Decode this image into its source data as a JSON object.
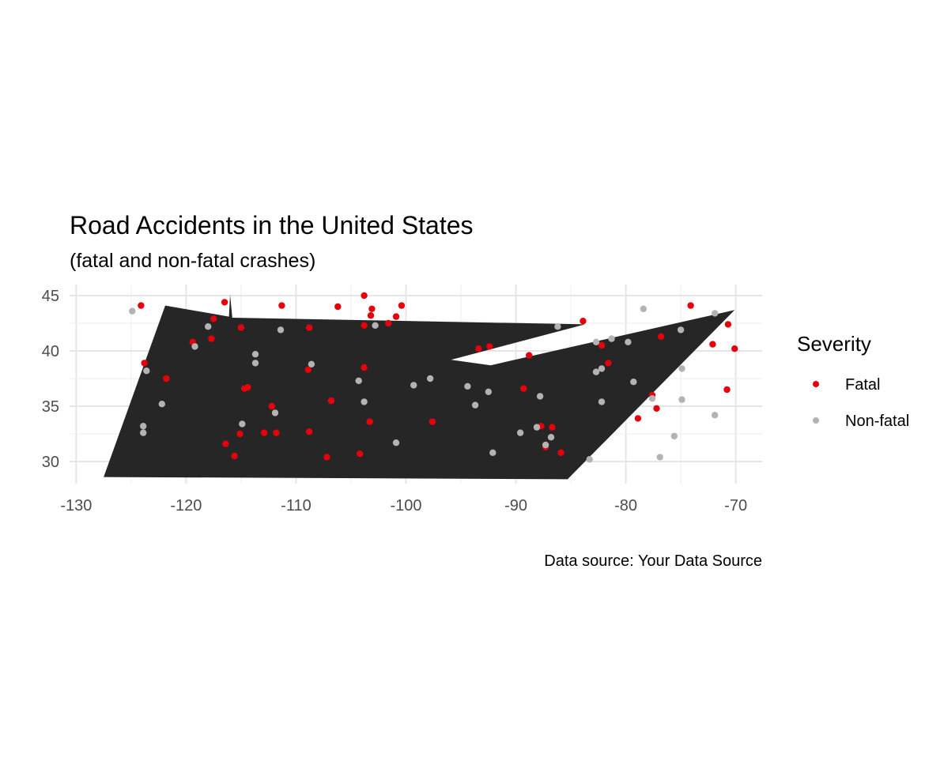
{
  "chart_data": {
    "type": "scatter",
    "title": "Road Accidents in the United States",
    "subtitle": "(fatal and non-fatal crashes)",
    "caption": "Data source: Your Data Source",
    "xlim": [
      -130.6,
      -67.6
    ],
    "ylim": [
      28,
      46
    ],
    "x_ticks": [
      -130,
      -120,
      -110,
      -100,
      -90,
      -80,
      -70
    ],
    "y_ticks": [
      30,
      35,
      40,
      45
    ],
    "grid": true,
    "legend": {
      "title": "Severity",
      "position": "right"
    },
    "background_shape": {
      "fill": "#262626",
      "outer": [
        [
          -127.5,
          28.6
        ],
        [
          -121.9,
          44.1
        ],
        [
          -116.1,
          43.1
        ],
        [
          -116.0,
          45.1
        ],
        [
          -115.8,
          43.0
        ],
        [
          -83.7,
          42.4
        ],
        [
          -95.9,
          39.2
        ],
        [
          -92.3,
          38.7
        ],
        [
          -70.1,
          43.7
        ],
        [
          -85.3,
          28.4
        ]
      ]
    },
    "series": [
      {
        "name": "Fatal",
        "color": "#e6000c",
        "points": [
          [
            -124.1,
            44.1
          ],
          [
            -123.8,
            38.9
          ],
          [
            -121.8,
            37.5
          ],
          [
            -119.4,
            40.8
          ],
          [
            -117.7,
            41.1
          ],
          [
            -117.5,
            42.9
          ],
          [
            -116.5,
            44.4
          ],
          [
            -116.4,
            31.6
          ],
          [
            -115.6,
            30.5
          ],
          [
            -115.1,
            32.5
          ],
          [
            -115.0,
            42.1
          ],
          [
            -114.7,
            36.6
          ],
          [
            -114.4,
            36.7
          ],
          [
            -112.9,
            32.6
          ],
          [
            -112.2,
            35.0
          ],
          [
            -111.8,
            32.6
          ],
          [
            -111.3,
            44.1
          ],
          [
            -108.9,
            38.3
          ],
          [
            -108.8,
            42.1
          ],
          [
            -108.8,
            32.7
          ],
          [
            -107.2,
            30.4
          ],
          [
            -106.8,
            35.5
          ],
          [
            -106.2,
            44.0
          ],
          [
            -104.2,
            30.7
          ],
          [
            -103.8,
            45.0
          ],
          [
            -103.8,
            38.5
          ],
          [
            -103.8,
            42.3
          ],
          [
            -103.3,
            33.6
          ],
          [
            -103.2,
            43.2
          ],
          [
            -103.1,
            43.8
          ],
          [
            -101.6,
            42.5
          ],
          [
            -100.9,
            43.1
          ],
          [
            -100.4,
            44.1
          ],
          [
            -97.6,
            33.6
          ],
          [
            -93.4,
            40.2
          ],
          [
            -92.4,
            40.4
          ],
          [
            -89.3,
            36.6
          ],
          [
            -88.8,
            39.6
          ],
          [
            -87.7,
            33.2
          ],
          [
            -87.3,
            31.3
          ],
          [
            -86.7,
            33.1
          ],
          [
            -85.9,
            30.8
          ],
          [
            -83.9,
            42.7
          ],
          [
            -82.2,
            40.5
          ],
          [
            -81.6,
            38.9
          ],
          [
            -78.9,
            33.9
          ],
          [
            -77.6,
            36.0
          ],
          [
            -77.2,
            34.8
          ],
          [
            -76.8,
            41.3
          ],
          [
            -74.1,
            44.1
          ],
          [
            -72.1,
            40.6
          ],
          [
            -70.8,
            36.5
          ],
          [
            -70.7,
            42.4
          ],
          [
            -70.1,
            40.2
          ]
        ]
      },
      {
        "name": "Non-fatal",
        "color": "#b3b3b3",
        "points": [
          [
            -124.9,
            43.6
          ],
          [
            -123.9,
            33.2
          ],
          [
            -123.9,
            32.6
          ],
          [
            -123.6,
            38.2
          ],
          [
            -122.2,
            35.2
          ],
          [
            -119.2,
            40.4
          ],
          [
            -118.0,
            42.2
          ],
          [
            -114.9,
            33.4
          ],
          [
            -113.7,
            39.7
          ],
          [
            -113.7,
            38.9
          ],
          [
            -111.9,
            34.4
          ],
          [
            -111.4,
            41.9
          ],
          [
            -108.6,
            38.8
          ],
          [
            -104.3,
            37.3
          ],
          [
            -103.8,
            35.4
          ],
          [
            -102.8,
            42.3
          ],
          [
            -100.9,
            31.7
          ],
          [
            -99.3,
            36.9
          ],
          [
            -97.8,
            37.5
          ],
          [
            -94.4,
            36.8
          ],
          [
            -93.7,
            35.1
          ],
          [
            -92.5,
            36.3
          ],
          [
            -92.1,
            30.8
          ],
          [
            -89.6,
            32.6
          ],
          [
            -88.1,
            33.1
          ],
          [
            -87.8,
            35.9
          ],
          [
            -87.3,
            31.5
          ],
          [
            -86.8,
            32.2
          ],
          [
            -86.2,
            42.2
          ],
          [
            -83.3,
            30.2
          ],
          [
            -82.7,
            38.1
          ],
          [
            -82.7,
            40.8
          ],
          [
            -82.2,
            35.4
          ],
          [
            -82.2,
            38.4
          ],
          [
            -81.3,
            41.1
          ],
          [
            -79.8,
            40.8
          ],
          [
            -79.3,
            37.2
          ],
          [
            -78.4,
            43.8
          ],
          [
            -77.6,
            35.7
          ],
          [
            -76.9,
            30.4
          ],
          [
            -75.6,
            32.3
          ],
          [
            -75.0,
            41.9
          ],
          [
            -74.9,
            38.4
          ],
          [
            -74.9,
            35.6
          ],
          [
            -71.9,
            34.2
          ],
          [
            -71.9,
            43.4
          ]
        ]
      }
    ]
  }
}
